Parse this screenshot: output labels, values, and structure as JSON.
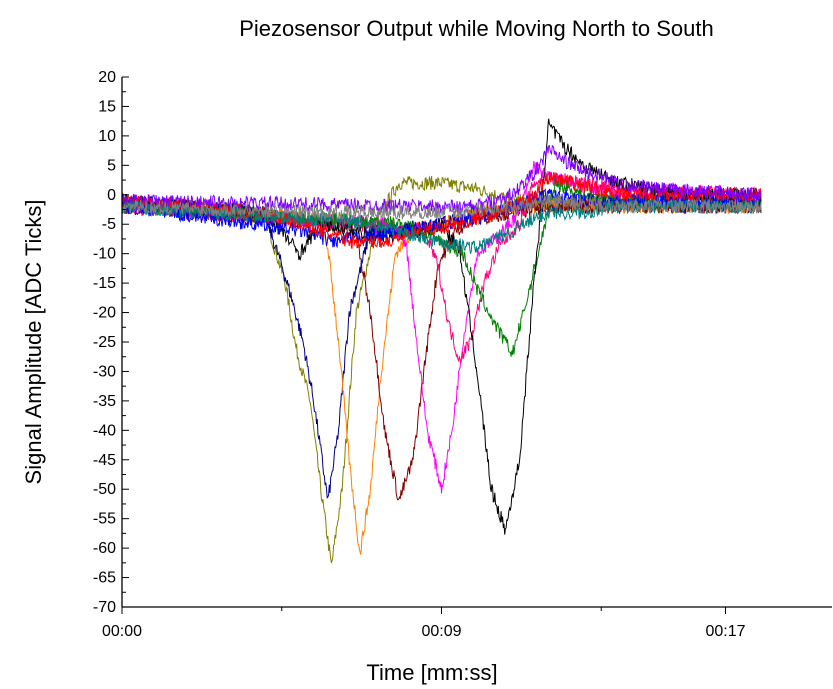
{
  "chart_data": {
    "type": "line",
    "title": "Piezosensor Output while Moving North to South",
    "xlabel": "Time [mm:ss]",
    "ylabel": "Signal Amplitude [ADC Ticks]",
    "x_unit": "seconds",
    "xlim": [
      0,
      20
    ],
    "ylim": [
      -70,
      20
    ],
    "y_ticks": [
      20,
      15,
      10,
      5,
      0,
      -5,
      -10,
      -15,
      -20,
      -25,
      -30,
      -35,
      -40,
      -45,
      -50,
      -55,
      -60,
      -65,
      -70
    ],
    "x_ticks": [
      {
        "value": 0,
        "label": "00:00"
      },
      {
        "value": 9,
        "label": "00:09"
      },
      {
        "value": 17,
        "label": "00:17"
      }
    ],
    "grid": false,
    "legend": "none",
    "series": [
      {
        "color": "#808000",
        "x": [
          0,
          4.0,
          4.6,
          4.9,
          5.3,
          5.6,
          5.9,
          6.2,
          6.6,
          7.2,
          7.8,
          9.0,
          10.0,
          11.0,
          12.0,
          14.0,
          18.0
        ],
        "y": [
          -1,
          -3,
          -15,
          -26,
          -35,
          -50,
          -63,
          -50,
          -20,
          -4,
          2,
          2,
          1,
          -1,
          -1,
          -1,
          -1
        ]
      },
      {
        "color": "#000080",
        "x": [
          0,
          4.0,
          4.5,
          4.8,
          5.1,
          5.4,
          5.8,
          6.1,
          6.4,
          7.0,
          7.8,
          9.0,
          10.0,
          12.0,
          14.0,
          18.0
        ],
        "y": [
          -1,
          -3,
          -12,
          -18,
          -25,
          -35,
          -52,
          -40,
          -20,
          -6,
          -6,
          -5,
          -3,
          -2,
          -2,
          -2
        ]
      },
      {
        "color": "#FF8000",
        "x": [
          0,
          5.5,
          5.8,
          6.1,
          6.4,
          6.7,
          7.0,
          7.3,
          7.7,
          8.2,
          9.0,
          10.0,
          12.0,
          14.0,
          18.0
        ],
        "y": [
          -2,
          -4,
          -9,
          -25,
          -45,
          -61,
          -50,
          -30,
          -10,
          -6,
          -5,
          -3,
          -2,
          -2,
          -2
        ]
      },
      {
        "color": "#800000",
        "x": [
          0,
          6.0,
          6.6,
          7.0,
          7.4,
          7.8,
          8.2,
          8.5,
          8.9,
          9.4,
          10.0,
          12.0,
          14.0,
          18.0
        ],
        "y": [
          -2,
          -5,
          -7,
          -20,
          -40,
          -52,
          -45,
          -30,
          -12,
          -6,
          -4,
          -2,
          -2,
          -2
        ]
      },
      {
        "color": "#FF00FF",
        "x": [
          0,
          7.5,
          8.0,
          8.3,
          8.6,
          9.0,
          9.3,
          9.6,
          10.0,
          10.6,
          11.2,
          11.6,
          12.0,
          14.0,
          18.0
        ],
        "y": [
          -2,
          -5,
          -8,
          -25,
          -40,
          -50,
          -40,
          -25,
          -10,
          -7,
          -3,
          5,
          3,
          0,
          0
        ]
      },
      {
        "color": "#FF0080",
        "x": [
          0,
          8.5,
          8.9,
          9.2,
          9.5,
          9.8,
          10.2,
          10.6,
          11.2,
          11.6,
          12.0,
          14.0,
          18.0
        ],
        "y": [
          -2,
          -6,
          -12,
          -22,
          -28,
          -25,
          -15,
          -9,
          -5,
          2,
          3,
          1,
          0
        ]
      },
      {
        "color": "#008000",
        "x": [
          0,
          8.0,
          9.0,
          9.6,
          10.0,
          10.5,
          11.0,
          11.4,
          11.8,
          12.2,
          13.0,
          14.0,
          18.0
        ],
        "y": [
          -2,
          -5,
          -8,
          -10,
          -16,
          -22,
          -27,
          -18,
          -8,
          2,
          0,
          -1,
          -1
        ]
      },
      {
        "color": "#000000",
        "x": [
          0,
          4.0,
          4.6,
          5.0,
          5.6,
          6.5,
          7.5,
          8.5,
          9.0,
          9.5,
          10.0,
          10.4,
          10.8,
          11.2,
          11.6,
          11.8,
          12.0,
          12.5,
          13.0,
          14.0,
          15.0,
          16.0,
          18.0
        ],
        "y": [
          -1,
          -3,
          -7,
          -10,
          -5,
          -6,
          -7,
          -6,
          -5,
          -9,
          -30,
          -50,
          -57,
          -45,
          -15,
          -3,
          12,
          8,
          5,
          2,
          1,
          0,
          0
        ]
      },
      {
        "color": "#0000FF",
        "x": [
          0,
          5.0,
          6.0,
          7.0,
          8.0,
          9.0,
          10.0,
          11.0,
          12.0,
          13.0,
          14.0,
          18.0
        ],
        "y": [
          -2,
          -6,
          -8,
          -7,
          -6,
          -5,
          -4,
          -2,
          0,
          -1,
          -1,
          -1
        ]
      },
      {
        "color": "#FF0000",
        "x": [
          0,
          4.0,
          5.5,
          6.5,
          7.5,
          8.5,
          9.5,
          10.5,
          11.5,
          12.0,
          14.0,
          18.0
        ],
        "y": [
          -1,
          -3,
          -6,
          -8,
          -8,
          -6,
          -5,
          -3,
          -1,
          3,
          0,
          0
        ]
      },
      {
        "color": "#8000FF",
        "x": [
          0,
          9.0,
          10.0,
          11.0,
          11.8,
          12.0,
          12.4,
          13.0,
          14.0,
          15.0,
          18.0
        ],
        "y": [
          -1,
          -2,
          -2,
          0,
          5,
          8,
          6,
          4,
          2,
          1,
          0
        ]
      },
      {
        "color": "#008080",
        "x": [
          0,
          5.0,
          7.0,
          9.0,
          10.0,
          11.0,
          12.0,
          13.0,
          14.0,
          18.0
        ],
        "y": [
          -2,
          -4,
          -5,
          -8,
          -9,
          -6,
          -3,
          -3,
          -2,
          -2
        ]
      },
      {
        "color": "#808080",
        "x": [
          0,
          6.0,
          9.0,
          11.0,
          12.0,
          14.0,
          18.0
        ],
        "y": [
          -2,
          -3,
          -3,
          -2,
          -1,
          -2,
          -2
        ]
      }
    ]
  }
}
